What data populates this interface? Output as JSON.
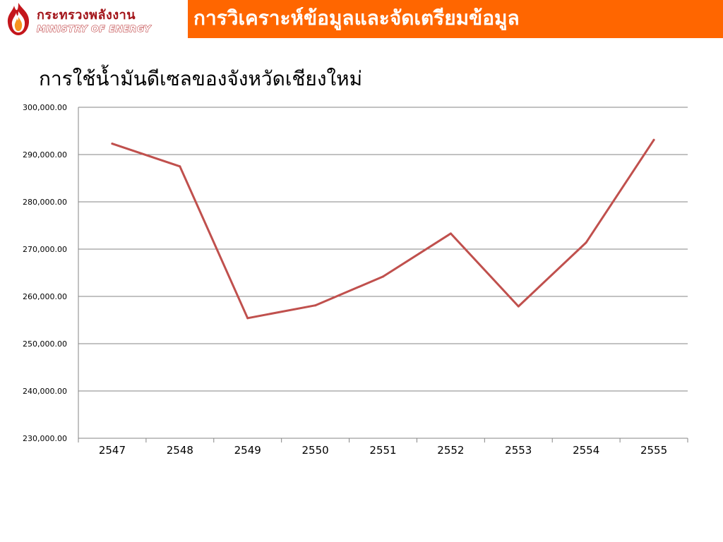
{
  "header": {
    "logo": {
      "name_th": "กระทรวงพลังงาน",
      "name_en": "MINISTRY OF ENERGY",
      "icon": "flame-emblem-icon"
    },
    "slide_title": "การวิเคราะห์ข้อมูลและจัดเตรียมข้อมูล"
  },
  "colors": {
    "title_bar": "#ff6600",
    "series_line": "#c0504d",
    "gridline": "#868686",
    "logo_red": "#a3151a"
  },
  "chart_data": {
    "type": "line",
    "title": "การใช้น้ำมันดีเซลของจังหวัดเชียงใหม่",
    "xlabel": "",
    "ylabel": "",
    "categories": [
      "2547",
      "2548",
      "2549",
      "2550",
      "2551",
      "2552",
      "2553",
      "2554",
      "2555"
    ],
    "series": [
      {
        "values": [
          292300,
          287500,
          255400,
          258100,
          264200,
          273300,
          257900,
          271400,
          293100
        ]
      }
    ],
    "ylim": [
      230000,
      300000
    ],
    "yticks": [
      {
        "value": 230000,
        "label": "230,000.00"
      },
      {
        "value": 240000,
        "label": "240,000.00"
      },
      {
        "value": 250000,
        "label": "250,000.00"
      },
      {
        "value": 260000,
        "label": "260,000.00"
      },
      {
        "value": 270000,
        "label": "270,000.00"
      },
      {
        "value": 280000,
        "label": "280,000.00"
      },
      {
        "value": 290000,
        "label": "290,000.00"
      },
      {
        "value": 300000,
        "label": "300,000.00"
      }
    ],
    "grid": "horizontal",
    "legend": "none"
  }
}
